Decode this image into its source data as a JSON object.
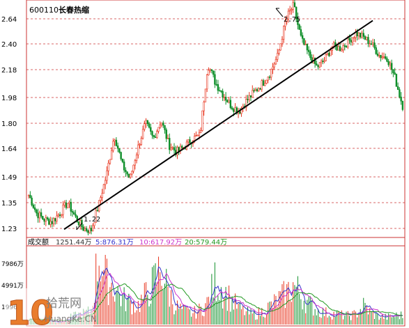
{
  "header": {
    "code": "600110",
    "name": "长春热缩"
  },
  "annotations": {
    "high": "2.75",
    "low": "1.22"
  },
  "chart_data": [
    {
      "type": "candlestick",
      "title": "600110 长春热缩",
      "y_ticks": [
        "2.64",
        "2.40",
        "2.18",
        "1.98",
        "1.80",
        "1.64",
        "1.49",
        "1.35",
        "1.23"
      ],
      "y_tick_values": [
        2.64,
        2.4,
        2.18,
        1.98,
        1.8,
        1.64,
        1.49,
        1.35,
        1.23
      ],
      "scale": "log",
      "grid": true,
      "colors": {
        "up": "#e8331c",
        "down": "#0f8f2a",
        "trendline": "#000000",
        "grid": "#cc3333"
      },
      "close_path": [
        1.39,
        1.3,
        1.27,
        1.26,
        1.3,
        1.35,
        1.28,
        1.23,
        1.22,
        1.34,
        1.5,
        1.72,
        1.55,
        1.48,
        1.64,
        1.8,
        1.7,
        1.82,
        1.66,
        1.62,
        1.65,
        1.7,
        1.72,
        2.22,
        2.08,
        2.0,
        1.92,
        1.88,
        1.96,
        2.02,
        2.08,
        2.16,
        2.3,
        2.62,
        2.75,
        2.44,
        2.3,
        2.2,
        2.26,
        2.38,
        2.36,
        2.42,
        2.5,
        2.46,
        2.4,
        2.3,
        2.28,
        2.12,
        1.92
      ],
      "high": 2.75,
      "low": 1.22,
      "trendline": {
        "from": 1.22,
        "to": 2.5
      }
    },
    {
      "type": "bar",
      "title": "成交额",
      "legend": [
        {
          "label": "1251.44万",
          "color": "#333333"
        },
        {
          "label": "5:876.31万",
          "color": "#3333cc"
        },
        {
          "label": "10:617.92万",
          "color": "#cc33cc"
        },
        {
          "label": "20:579.44万",
          "color": "#229922"
        }
      ],
      "y_ticks": [
        "7986万",
        "4991万",
        "1996"
      ],
      "y_tick_values": [
        7986,
        4991,
        1996
      ],
      "values": [
        700,
        900,
        600,
        500,
        400,
        800,
        1200,
        1500,
        1800,
        9800,
        6000,
        5200,
        3600,
        3000,
        2600,
        4000,
        5600,
        7800,
        4200,
        2400,
        1800,
        1500,
        2000,
        3000,
        6200,
        4600,
        3400,
        2200,
        1600,
        1300,
        1800,
        2500,
        3300,
        4200,
        5400,
        4000,
        2800,
        2000,
        1600,
        1500,
        1300,
        1200,
        1400,
        2600,
        1500,
        1100,
        1000,
        1200,
        1250
      ]
    }
  ],
  "watermark": {
    "digits": "10",
    "cn": "拾荒网",
    "en": "HuangKe.CN"
  }
}
